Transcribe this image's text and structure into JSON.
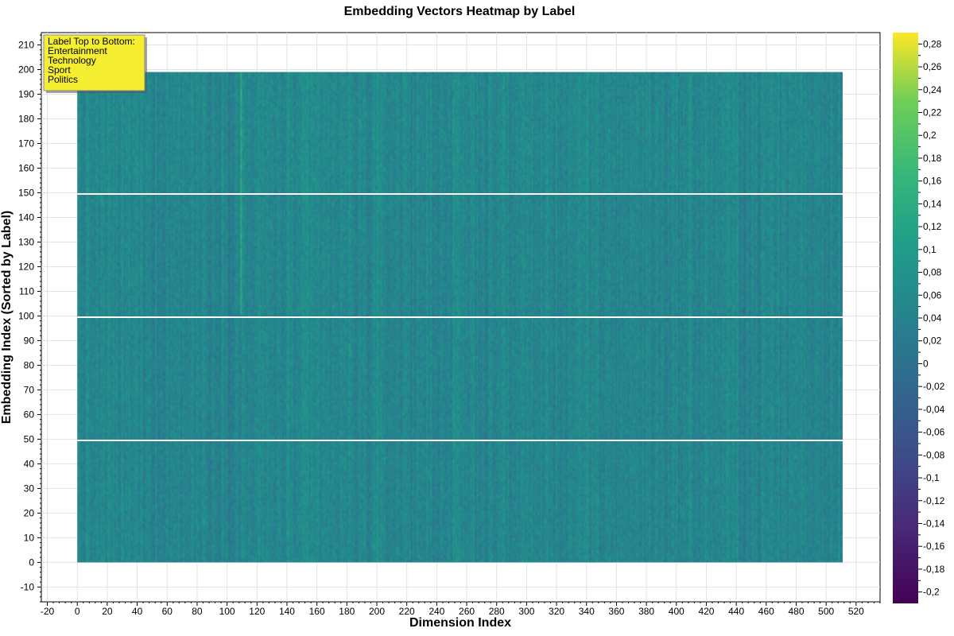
{
  "chart_data": {
    "type": "heatmap",
    "title": "Embedding Vectors Heatmap by Label",
    "xlabel": "Dimension Index",
    "ylabel": "Embedding Index (Sorted by Label)",
    "xlim": [
      -24,
      536
    ],
    "ylim": [
      -16,
      215
    ],
    "x_ticks": [
      -20,
      0,
      20,
      40,
      60,
      80,
      100,
      120,
      140,
      160,
      180,
      200,
      220,
      240,
      260,
      280,
      300,
      320,
      340,
      360,
      380,
      400,
      420,
      440,
      460,
      480,
      500,
      520
    ],
    "y_ticks": [
      -10,
      0,
      10,
      20,
      30,
      40,
      50,
      60,
      70,
      80,
      90,
      100,
      110,
      120,
      130,
      140,
      150,
      160,
      170,
      180,
      190,
      200,
      210
    ],
    "grid": true,
    "n_rows": 200,
    "n_cols": 512,
    "value_range": [
      -0.21,
      0.29
    ],
    "colorscale": "viridis",
    "colorbar_ticks": [
      "0,28",
      "0,26",
      "0,24",
      "0,22",
      "0,2",
      "0,18",
      "0,16",
      "0,14",
      "0,12",
      "0,1",
      "0,08",
      "0,06",
      "0,04",
      "0,02",
      "0",
      "-0,02",
      "-0,04",
      "-0,06",
      "-0,08",
      "-0,1",
      "-0,12",
      "-0,14",
      "-0,16",
      "-0,18",
      "-0,2"
    ],
    "colorbar_tick_values": [
      0.28,
      0.26,
      0.24,
      0.22,
      0.2,
      0.18,
      0.16,
      0.14,
      0.12,
      0.1,
      0.08,
      0.06,
      0.04,
      0.02,
      0,
      -0.02,
      -0.04,
      -0.06,
      -0.08,
      -0.1,
      -0.12,
      -0.14,
      -0.16,
      -0.18,
      -0.2
    ],
    "separator_lines_y": [
      50,
      100,
      150
    ],
    "separator_color": "#ffffff",
    "legend": {
      "placement": "top-left",
      "background": "#f5ee30",
      "title": "Label Top to Bottom:",
      "items": [
        "Entertainment",
        "Technology",
        "Sport",
        "Politics"
      ]
    }
  }
}
